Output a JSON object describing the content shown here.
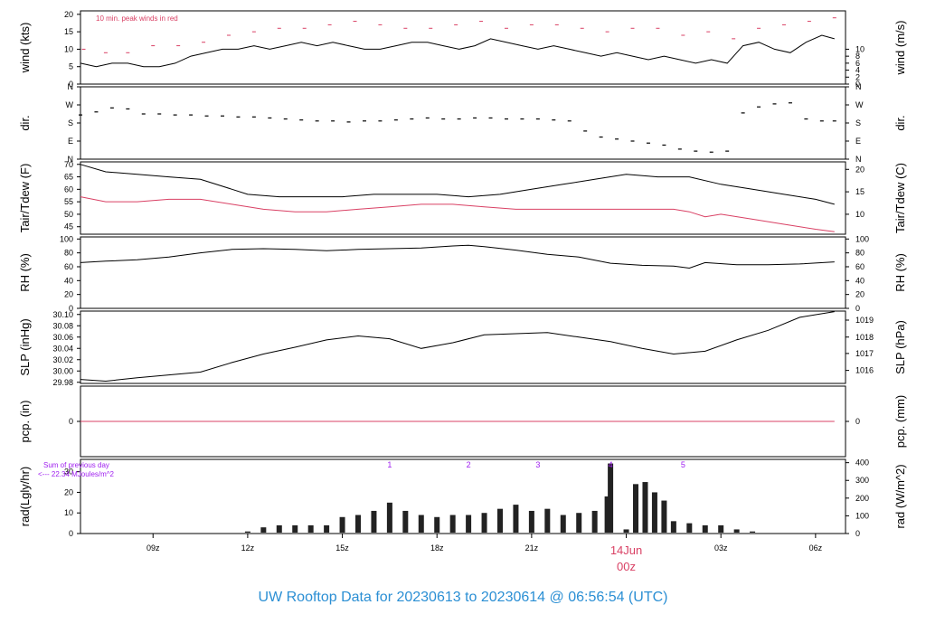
{
  "title": "UW Rooftop Data for 20230613  to  20230614 @ 06:56:54  (UTC)",
  "colors": {
    "trace": "#000000",
    "accent_red": "#d94064",
    "purple": "#a020f0",
    "title_blue": "#2b8fd4",
    "frame": "#000000"
  },
  "chart_data": [
    {
      "id": "wind",
      "type": "line",
      "left_label": "wind (kts)",
      "right_label": "wind (m/s)",
      "left_ticks": [
        "0",
        "5",
        "10",
        "15",
        "20"
      ],
      "left_tick_values": [
        0,
        5,
        10,
        15,
        20
      ],
      "right_ticks": [
        "0",
        "2",
        "4",
        "6",
        "8",
        "10"
      ],
      "right_tick_values": [
        0,
        2,
        4,
        6,
        8,
        10
      ],
      "right_scale_note": "m/s",
      "ylim": [
        0,
        21
      ],
      "annotation": "10 min. peak winds in red",
      "series": [
        {
          "name": "10 min. peak winds",
          "color": "red",
          "style": "dash",
          "x": [
            6.8,
            7.5,
            8.2,
            9.0,
            9.8,
            10.6,
            11.4,
            12.2,
            13.0,
            13.8,
            14.6,
            15.4,
            16.2,
            17.0,
            17.8,
            18.6,
            19.4,
            20.2,
            21.0,
            21.8,
            22.6,
            23.4,
            24.2,
            25.0,
            25.8,
            26.6,
            27.4,
            28.2,
            29.0,
            29.8,
            30.6
          ],
          "values": [
            10,
            9,
            9,
            11,
            11,
            12,
            14,
            15,
            16,
            16,
            17,
            18,
            17,
            16,
            16,
            17,
            18,
            16,
            17,
            17,
            16,
            15,
            16,
            16,
            14,
            15,
            13,
            16,
            17,
            18,
            19
          ]
        },
        {
          "x": [
            6.7,
            7.2,
            7.7,
            8.2,
            8.7,
            9.2,
            9.7,
            10.2,
            10.7,
            11.2,
            11.7,
            12.2,
            12.7,
            13.2,
            13.7,
            14.2,
            14.7,
            15.2,
            15.7,
            16.2,
            16.7,
            17.2,
            17.7,
            18.2,
            18.7,
            19.2,
            19.7,
            20.2,
            20.7,
            21.2,
            21.7,
            22.2,
            22.7,
            23.2,
            23.7,
            24.2,
            24.7,
            25.2,
            25.7,
            26.2,
            26.7,
            27.2,
            27.7,
            28.2,
            28.7,
            29.2,
            29.7,
            30.2,
            30.6
          ],
          "values": [
            6,
            5,
            6,
            6,
            5,
            5,
            6,
            8,
            9,
            10,
            10,
            11,
            10,
            11,
            12,
            11,
            12,
            11,
            10,
            10,
            11,
            12,
            12,
            11,
            10,
            11,
            13,
            12,
            11,
            10,
            11,
            10,
            9,
            8,
            9,
            8,
            7,
            8,
            7,
            6,
            7,
            6,
            11,
            12,
            10,
            9,
            12,
            14,
            13
          ]
        }
      ]
    },
    {
      "id": "dir",
      "type": "scatter",
      "left_label": "dir.",
      "right_label": "dir.",
      "left_ticks": [
        "N",
        "W",
        "S",
        "E",
        "N"
      ],
      "left_tick_values": [
        360,
        270,
        180,
        90,
        0
      ],
      "right_ticks": [
        "N",
        "W",
        "S",
        "E",
        "N"
      ],
      "right_tick_values": [
        360,
        270,
        180,
        90,
        0
      ],
      "ylim": [
        0,
        360
      ],
      "series": [
        {
          "x": [
            6.7,
            7.2,
            7.7,
            8.2,
            8.7,
            9.2,
            9.7,
            10.2,
            10.7,
            11.2,
            11.7,
            12.2,
            12.7,
            13.2,
            13.7,
            14.2,
            14.7,
            15.2,
            15.7,
            16.2,
            16.7,
            17.2,
            17.7,
            18.2,
            18.7,
            19.2,
            19.7,
            20.2,
            20.7,
            21.2,
            21.7,
            22.2,
            22.7,
            23.2,
            23.7,
            24.2,
            24.7,
            25.2,
            25.7,
            26.2,
            26.7,
            27.2,
            27.7,
            28.2,
            28.7,
            29.2,
            29.7,
            30.2,
            30.6
          ],
          "values": [
            220,
            235,
            255,
            250,
            225,
            225,
            220,
            220,
            215,
            215,
            210,
            210,
            205,
            200,
            195,
            190,
            190,
            185,
            190,
            190,
            195,
            200,
            205,
            200,
            200,
            205,
            205,
            200,
            200,
            200,
            195,
            190,
            140,
            110,
            100,
            90,
            80,
            70,
            50,
            40,
            35,
            40,
            230,
            260,
            275,
            280,
            200,
            190,
            190
          ]
        }
      ]
    },
    {
      "id": "temp",
      "type": "line",
      "left_label": "Tair/Tdew (F)",
      "right_label": "Tair/Tdew (C)",
      "left_ticks": [
        "45",
        "50",
        "55",
        "60",
        "65",
        "70"
      ],
      "left_tick_values": [
        45,
        50,
        55,
        60,
        65,
        70
      ],
      "right_ticks": [
        "10",
        "15",
        "20"
      ],
      "right_tick_values": [
        50,
        59,
        68
      ],
      "ylim": [
        42,
        71
      ],
      "series": [
        {
          "name": "Tair",
          "color": "black",
          "x": [
            6.7,
            7.5,
            8.5,
            9.5,
            10.5,
            11.5,
            12.0,
            13.0,
            14.0,
            15.0,
            16.0,
            17.0,
            18.0,
            19.0,
            20.0,
            21.0,
            22.0,
            23.0,
            24.0,
            25.0,
            26.0,
            27.0,
            28.0,
            29.0,
            30.0,
            30.6
          ],
          "values": [
            70,
            67,
            66,
            65,
            64,
            60,
            58,
            57,
            57,
            57,
            58,
            58,
            58,
            57,
            58,
            60,
            62,
            64,
            66,
            65,
            65,
            62,
            60,
            58,
            56,
            54
          ]
        },
        {
          "name": "Tdew",
          "color": "red",
          "x": [
            6.7,
            7.5,
            8.5,
            9.5,
            10.5,
            11.5,
            12.5,
            13.5,
            14.5,
            15.5,
            16.5,
            17.5,
            18.5,
            19.5,
            20.5,
            21.5,
            22.5,
            23.5,
            24.5,
            25.5,
            26.0,
            26.5,
            27.0,
            28.0,
            29.0,
            30.0,
            30.6
          ],
          "values": [
            57,
            55,
            55,
            56,
            56,
            54,
            52,
            51,
            51,
            52,
            53,
            54,
            54,
            53,
            52,
            52,
            52,
            52,
            52,
            52,
            51,
            49,
            50,
            48,
            46,
            44,
            43
          ]
        }
      ]
    },
    {
      "id": "rh",
      "type": "line",
      "left_label": "RH (%)",
      "right_label": "RH (%)",
      "left_ticks": [
        "0",
        "20",
        "40",
        "60",
        "80",
        "100"
      ],
      "left_tick_values": [
        0,
        20,
        40,
        60,
        80,
        100
      ],
      "right_ticks": [
        "0",
        "20",
        "40",
        "60",
        "80",
        "100"
      ],
      "right_tick_values": [
        0,
        20,
        40,
        60,
        80,
        100
      ],
      "ylim": [
        0,
        103
      ],
      "series": [
        {
          "x": [
            6.7,
            7.5,
            8.5,
            9.5,
            10.5,
            11.5,
            12.5,
            13.5,
            14.5,
            15.5,
            16.5,
            17.5,
            18.5,
            19.0,
            19.5,
            20.5,
            21.5,
            22.5,
            23.5,
            24.5,
            25.5,
            26.0,
            26.5,
            27.5,
            28.5,
            29.5,
            30.6
          ],
          "values": [
            66,
            68,
            70,
            74,
            80,
            85,
            86,
            85,
            83,
            85,
            86,
            87,
            90,
            91,
            89,
            84,
            78,
            74,
            65,
            62,
            61,
            58,
            66,
            63,
            63,
            64,
            67
          ]
        }
      ]
    },
    {
      "id": "slp",
      "type": "line",
      "left_label": "SLP (inHg)",
      "right_label": "SLP (hPa)",
      "left_ticks": [
        "29.98",
        "30.00",
        "30.02",
        "30.04",
        "30.06",
        "30.08",
        "30.10"
      ],
      "left_tick_values": [
        29.98,
        30.0,
        30.02,
        30.04,
        30.06,
        30.08,
        30.1
      ],
      "right_ticks": [
        "1016",
        "1017",
        "1018",
        "1019"
      ],
      "right_tick_values": [
        30.001,
        30.031,
        30.06,
        30.09
      ],
      "ylim": [
        29.978,
        30.106
      ],
      "series": [
        {
          "x": [
            6.7,
            7.5,
            8.5,
            9.5,
            10.5,
            11.5,
            12.5,
            13.5,
            14.5,
            15.5,
            16.5,
            17.5,
            18.5,
            19.5,
            20.5,
            21.5,
            22.5,
            23.5,
            24.5,
            25.5,
            26.5,
            27.5,
            28.5,
            29.5,
            30.6
          ],
          "values": [
            29.985,
            29.982,
            29.988,
            29.993,
            29.998,
            30.015,
            30.03,
            30.042,
            30.055,
            30.062,
            30.057,
            30.04,
            30.05,
            30.064,
            30.066,
            30.068,
            30.06,
            30.052,
            30.04,
            30.03,
            30.035,
            30.055,
            30.072,
            30.095,
            30.105
          ]
        }
      ]
    },
    {
      "id": "pcp",
      "type": "line",
      "left_label": "pcp. (in)",
      "right_label": "pcp. (mm)",
      "left_ticks": [
        "0"
      ],
      "left_tick_values": [
        0
      ],
      "right_ticks": [
        "0"
      ],
      "right_tick_values": [
        0
      ],
      "ylim": [
        -1,
        1
      ],
      "series": [
        {
          "color": "red",
          "x": [
            6.7,
            30.6
          ],
          "values": [
            0,
            0
          ]
        }
      ]
    },
    {
      "id": "rad",
      "type": "bar",
      "left_label": "rad(Lgly/hr)",
      "right_label": "rad (W/m^2)",
      "left_ticks": [
        "0",
        "10",
        "20",
        "30"
      ],
      "left_tick_values": [
        0,
        10,
        20,
        30
      ],
      "right_ticks": [
        "0",
        "100",
        "200",
        "300",
        "400"
      ],
      "right_tick_values": [
        0,
        8.6,
        17.2,
        25.8,
        34.4
      ],
      "ylim": [
        0,
        36
      ],
      "annotation_lines": [
        "Sum of previous day",
        "<--- 22.34 MJoules/m^2"
      ],
      "markers": [
        "1",
        "2",
        "3",
        "4",
        "5"
      ],
      "marker_x": [
        16.5,
        19.0,
        21.2,
        23.5,
        25.8
      ],
      "series": [
        {
          "x": [
            12.0,
            12.5,
            13.0,
            13.5,
            14.0,
            14.5,
            15.0,
            15.5,
            16.0,
            16.5,
            17.0,
            17.5,
            18.0,
            18.5,
            19.0,
            19.5,
            20.0,
            20.5,
            21.0,
            21.5,
            22.0,
            22.5,
            23.0,
            23.4,
            23.5,
            24.0,
            24.3,
            24.6,
            24.9,
            25.2,
            25.5,
            26.0,
            26.5,
            27.0,
            27.5,
            28.0
          ],
          "values": [
            1,
            3,
            4,
            4,
            4,
            4,
            8,
            9,
            11,
            15,
            11,
            9,
            8,
            9,
            9,
            10,
            12,
            14,
            11,
            12,
            9,
            10,
            11,
            18,
            34,
            2,
            24,
            25,
            20,
            16,
            6,
            5,
            4,
            4,
            2,
            1
          ]
        }
      ]
    }
  ],
  "x_axis": {
    "ticks": [
      "09z",
      "12z",
      "15z",
      "18z",
      "21z",
      "03z",
      "06z"
    ],
    "tick_hours": [
      9,
      12,
      15,
      18,
      21,
      27,
      30
    ],
    "day_label": "14Jun",
    "day_sublabel": "00z",
    "day_hour": 24,
    "xlim": [
      6.7,
      30.95
    ]
  }
}
